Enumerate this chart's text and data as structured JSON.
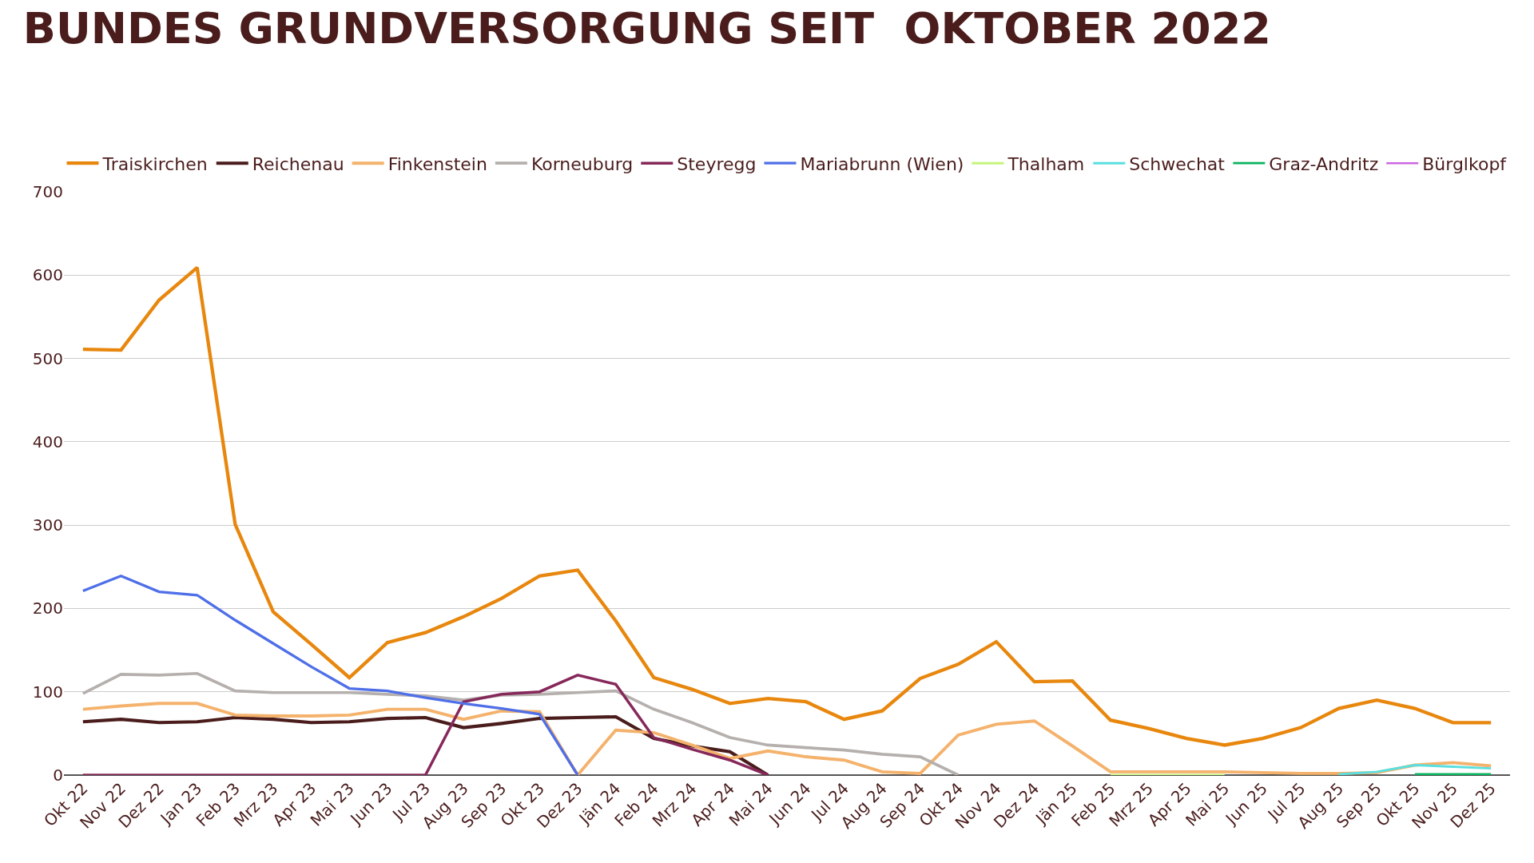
{
  "chart_data": {
    "type": "line",
    "title": "BUNDES GRUNDVERSORGUNG SEIT  OKTOBER 2022",
    "categories": [
      "Okt 22",
      "Nov 22",
      "Dez 22",
      "Jan 23",
      "Feb 23",
      "Mrz 23",
      "Apr 23",
      "Mai 23",
      "Jun 23",
      "Jul 23",
      "Aug 23",
      "Sep 23",
      "Okt 23",
      "Dez 23",
      "Jän 24",
      "Feb 24",
      "Mrz 24",
      "Apr 24",
      "Mai 24",
      "Jun 24",
      "Jul 24",
      "Aug 24",
      "Sep 24",
      "Okt 24",
      "Nov 24",
      "Dez 24",
      "Jän 25",
      "Feb 25",
      "Mrz 25",
      "Apr 25",
      "Mai 25",
      "Jun 25",
      "Jul 25",
      "Aug 25",
      "Sep 25",
      "Okt 25",
      "Nov 25",
      "Dez 25"
    ],
    "series": [
      {
        "name": "Traiskirchen",
        "color": "#e8870e",
        "values": [
          511,
          510,
          570,
          609,
          301,
          196,
          157,
          117,
          159,
          171,
          190,
          212,
          239,
          246,
          185,
          117,
          103,
          86,
          92,
          88,
          67,
          77,
          116,
          133,
          160,
          112,
          113,
          66,
          56,
          44,
          36,
          44,
          57,
          80,
          90,
          80,
          63,
          63
        ]
      },
      {
        "name": "Reichenau",
        "color": "#4a1c1c",
        "values": [
          64,
          67,
          63,
          64,
          69,
          67,
          63,
          64,
          68,
          69,
          57,
          62,
          68,
          69,
          70,
          44,
          35,
          28,
          0,
          null,
          null,
          null,
          null,
          null,
          null,
          null,
          null,
          null,
          null,
          null,
          null,
          null,
          null,
          null,
          null,
          null,
          null,
          null
        ]
      },
      {
        "name": "Finkenstein",
        "color": "#f4b26c",
        "values": [
          79,
          83,
          86,
          86,
          72,
          71,
          71,
          72,
          79,
          79,
          67,
          77,
          76,
          0,
          54,
          51,
          36,
          20,
          29,
          22,
          18,
          4,
          2,
          48,
          61,
          65,
          35,
          4,
          4,
          4,
          4,
          3,
          2,
          2,
          3,
          12,
          15,
          11
        ]
      },
      {
        "name": "Korneuburg",
        "color": "#b5b0ad",
        "values": [
          98,
          121,
          120,
          122,
          101,
          99,
          99,
          99,
          97,
          95,
          90,
          96,
          97,
          99,
          101,
          79,
          63,
          45,
          36,
          33,
          30,
          25,
          22,
          0,
          null,
          null,
          null,
          null,
          null,
          null,
          null,
          null,
          null,
          null,
          null,
          null,
          null,
          null
        ]
      },
      {
        "name": "Steyregg",
        "color": "#86285a",
        "values": [
          0,
          0,
          0,
          0,
          0,
          0,
          0,
          0,
          0,
          0,
          88,
          97,
          100,
          120,
          109,
          45,
          31,
          18,
          0,
          null,
          null,
          null,
          null,
          null,
          null,
          null,
          null,
          null,
          null,
          null,
          null,
          null,
          null,
          null,
          null,
          null,
          null,
          null
        ]
      },
      {
        "name": "Mariabrunn (Wien)",
        "color": "#4f6fe8",
        "values": [
          221,
          239,
          220,
          216,
          186,
          158,
          130,
          104,
          101,
          93,
          86,
          80,
          73,
          0,
          null,
          null,
          null,
          null,
          null,
          null,
          null,
          null,
          null,
          null,
          null,
          null,
          null,
          null,
          null,
          null,
          null,
          null,
          null,
          null,
          null,
          null,
          null,
          null
        ]
      },
      {
        "name": "Thalham",
        "color": "#c4f57a",
        "values": [
          null,
          null,
          null,
          null,
          null,
          null,
          null,
          null,
          null,
          null,
          null,
          null,
          null,
          null,
          null,
          null,
          null,
          null,
          null,
          null,
          null,
          null,
          null,
          null,
          null,
          null,
          null,
          0,
          0,
          0,
          0,
          null,
          null,
          null,
          null,
          null,
          null,
          null
        ]
      },
      {
        "name": "Schwechat",
        "color": "#5adfe0",
        "values": [
          null,
          null,
          null,
          null,
          null,
          null,
          null,
          null,
          null,
          null,
          null,
          null,
          null,
          null,
          null,
          null,
          null,
          null,
          null,
          null,
          null,
          null,
          null,
          null,
          null,
          null,
          null,
          null,
          null,
          null,
          null,
          null,
          null,
          1,
          4,
          12,
          10,
          8
        ]
      },
      {
        "name": "Graz-Andritz",
        "color": "#0ab560",
        "values": [
          null,
          null,
          null,
          null,
          null,
          null,
          null,
          null,
          null,
          null,
          null,
          null,
          null,
          null,
          null,
          null,
          null,
          null,
          null,
          null,
          null,
          null,
          null,
          null,
          null,
          null,
          null,
          null,
          null,
          null,
          null,
          null,
          null,
          null,
          null,
          1,
          1,
          1
        ]
      },
      {
        "name": "Bürglkopf",
        "color": "#cc66e0",
        "values": [
          null,
          null,
          null,
          null,
          null,
          null,
          null,
          null,
          null,
          null,
          null,
          null,
          null,
          null,
          null,
          null,
          null,
          null,
          null,
          null,
          null,
          null,
          null,
          null,
          null,
          null,
          null,
          null,
          null,
          null,
          null,
          null,
          null,
          null,
          null,
          null,
          null,
          null
        ]
      }
    ],
    "ylim": [
      0,
      700
    ],
    "yticks": [
      0,
      100,
      200,
      300,
      400,
      500,
      600,
      700
    ],
    "grid": "y",
    "legend": "top"
  }
}
